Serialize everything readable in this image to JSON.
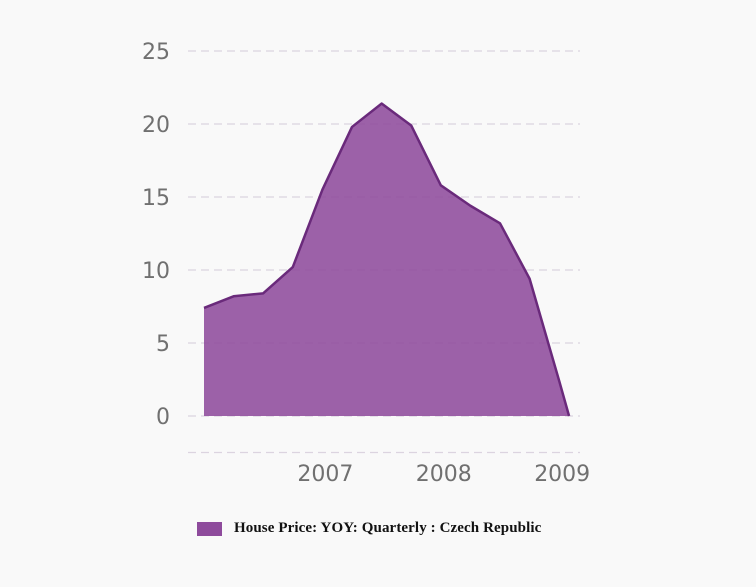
{
  "chart_data": {
    "type": "area",
    "title": "",
    "xlabel": "",
    "ylabel": "",
    "ylim": [
      -2.5,
      25
    ],
    "yticks": [
      "25",
      "20",
      "15",
      "10",
      "5",
      "0"
    ],
    "xticks": [
      "2007",
      "2008",
      "2009"
    ],
    "series": [
      {
        "name": "House Price: YOY: Quarterly : Czech  Republic",
        "color": "#8e4b9c",
        "line_color": "#6a2a7b",
        "x": [
          "2006-03",
          "2006-06",
          "2006-09",
          "2006-12",
          "2007-03",
          "2007-06",
          "2007-09",
          "2007-12",
          "2008-03",
          "2008-06",
          "2008-09",
          "2008-12",
          "2009-03",
          "2009-04"
        ],
        "values": [
          7.4,
          8.2,
          8.4,
          10.2,
          15.5,
          19.8,
          21.4,
          19.9,
          15.8,
          14.4,
          13.2,
          9.4,
          2.4,
          0.0
        ]
      }
    ],
    "grid": true,
    "legend_position": "bottom"
  }
}
